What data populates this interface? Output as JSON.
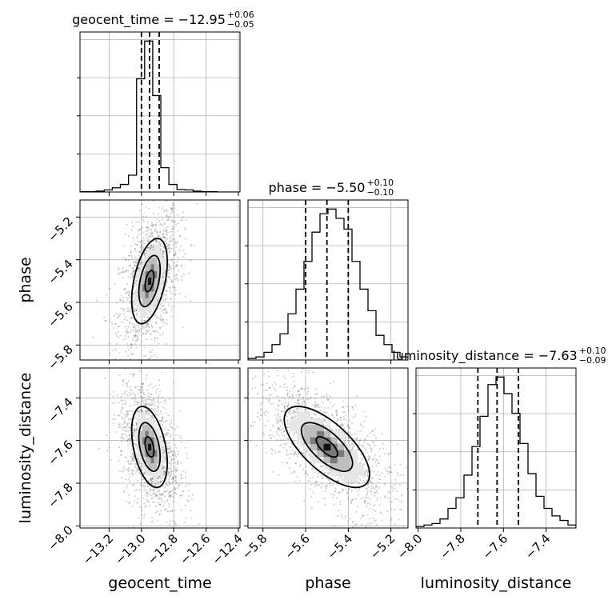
{
  "chart_data": {
    "type": "corner",
    "parameters": [
      "geocent_time",
      "phase",
      "luminosity_distance"
    ],
    "axis_labels": [
      "geocent_time",
      "phase",
      "luminosity_distance"
    ],
    "ranges": {
      "geocent_time": [
        -13.38,
        -12.39
      ],
      "phase": [
        -5.87,
        -5.12
      ],
      "luminosity_distance": [
        -8.01,
        -7.26
      ]
    },
    "ticks": {
      "geocent_time": {
        "values": [
          -13.2,
          -13.0,
          -12.8,
          -12.6,
          -12.4
        ],
        "labels": [
          "−13.2",
          "−13.0",
          "−12.8",
          "−12.6",
          "−12.4"
        ]
      },
      "phase": {
        "values": [
          -5.8,
          -5.6,
          -5.4,
          -5.2
        ],
        "labels": [
          "−5.8",
          "−5.6",
          "−5.4",
          "−5.2"
        ]
      },
      "luminosity_distance": {
        "values": [
          -8.0,
          -7.8,
          -7.6,
          -7.4
        ],
        "labels": [
          "−8.0",
          "−7.8",
          "−7.6",
          "−7.4"
        ]
      }
    },
    "titles": [
      {
        "param": "geocent_time",
        "text": "geocent_time = −12.95",
        "plus": "+0.06",
        "minus": "−0.05"
      },
      {
        "param": "phase",
        "text": "phase = −5.50",
        "plus": "+0.10",
        "minus": "−0.10"
      },
      {
        "param": "luminosity_distance",
        "text": "luminosity_distance = −7.63",
        "plus": "+0.10",
        "minus": "−0.09"
      }
    ],
    "quantiles": {
      "geocent_time": [
        -13.0,
        -12.95,
        -12.89
      ],
      "phase": [
        -5.6,
        -5.5,
        -5.4
      ],
      "luminosity_distance": [
        -7.72,
        -7.63,
        -7.53
      ]
    },
    "histograms": {
      "geocent_time": {
        "x0": -13.38,
        "dx": 0.05,
        "counts": [
          1,
          1,
          2,
          5,
          10,
          18,
          40,
          270,
          360,
          230,
          58,
          18,
          6,
          5,
          2,
          1,
          1,
          0,
          0,
          0
        ]
      },
      "phase": {
        "x0": -5.87,
        "dx": 0.0375,
        "counts": [
          1,
          2,
          5,
          10,
          17,
          30,
          46,
          64,
          83,
          95,
          98,
          92,
          85,
          64,
          46,
          32,
          16,
          10,
          5,
          2
        ]
      },
      "luminosity_distance": {
        "x0": -8.01,
        "dx": 0.0375,
        "counts": [
          1,
          2,
          3,
          6,
          13,
          20,
          35,
          54,
          74,
          95,
          100,
          89,
          76,
          56,
          36,
          21,
          13,
          8,
          5,
          2
        ]
      }
    },
    "correlations": {
      "phase|geocent_time": 0.45,
      "luminosity_distance|geocent_time": -0.4,
      "luminosity_distance|phase": -0.68
    },
    "grid": true,
    "legend": "none"
  }
}
